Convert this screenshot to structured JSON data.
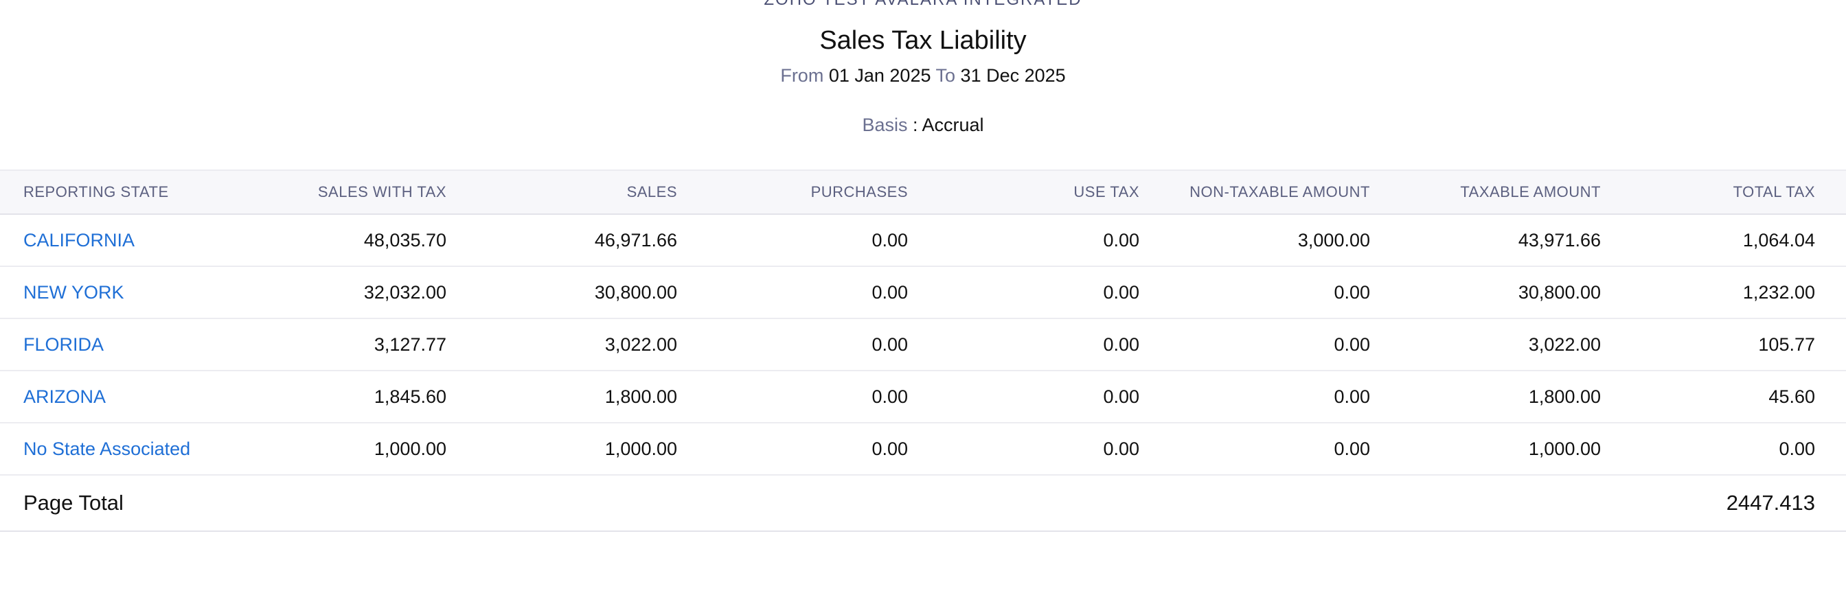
{
  "report": {
    "org_name": "ZOHO TEST AVALARA INTEGRATED",
    "title": "Sales Tax Liability",
    "from_label": "From",
    "from_date": "01 Jan 2025",
    "to_label": "To",
    "to_date": "31 Dec 2025",
    "basis_label": "Basis",
    "basis_sep": " : ",
    "basis_value": "Accrual"
  },
  "table": {
    "headers": [
      "REPORTING STATE",
      "SALES WITH TAX",
      "SALES",
      "PURCHASES",
      "USE TAX",
      "NON-TAXABLE AMOUNT",
      "TAXABLE AMOUNT",
      "TOTAL TAX"
    ],
    "rows": [
      {
        "state": "CALIFORNIA",
        "sales_with_tax": "48,035.70",
        "sales": "46,971.66",
        "purchases": "0.00",
        "use_tax": "0.00",
        "non_taxable": "3,000.00",
        "taxable": "43,971.66",
        "total_tax": "1,064.04"
      },
      {
        "state": "NEW YORK",
        "sales_with_tax": "32,032.00",
        "sales": "30,800.00",
        "purchases": "0.00",
        "use_tax": "0.00",
        "non_taxable": "0.00",
        "taxable": "30,800.00",
        "total_tax": "1,232.00"
      },
      {
        "state": "FLORIDA",
        "sales_with_tax": "3,127.77",
        "sales": "3,022.00",
        "purchases": "0.00",
        "use_tax": "0.00",
        "non_taxable": "0.00",
        "taxable": "3,022.00",
        "total_tax": "105.77"
      },
      {
        "state": "ARIZONA",
        "sales_with_tax": "1,845.60",
        "sales": "1,800.00",
        "purchases": "0.00",
        "use_tax": "0.00",
        "non_taxable": "0.00",
        "taxable": "1,800.00",
        "total_tax": "45.60"
      },
      {
        "state": "No State Associated",
        "sales_with_tax": "1,000.00",
        "sales": "1,000.00",
        "purchases": "0.00",
        "use_tax": "0.00",
        "non_taxable": "0.00",
        "taxable": "1,000.00",
        "total_tax": "0.00"
      }
    ],
    "page_total_label": "Page Total",
    "page_total_value": "2447.413"
  },
  "colors": {
    "link": "#1f6fd6",
    "header_bg": "#f7f7fa",
    "header_text": "#5c6080"
  }
}
